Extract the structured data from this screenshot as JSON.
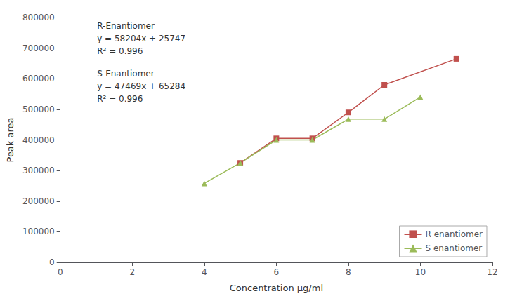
{
  "chart_data": {
    "type": "line",
    "xlabel": "Concentration μg/ml",
    "ylabel": "Peak area",
    "xlim": [
      0,
      12
    ],
    "xticks": [
      0,
      2,
      4,
      6,
      8,
      10,
      12
    ],
    "ylim": [
      0,
      800000
    ],
    "yticks": [
      0,
      100000,
      200000,
      300000,
      400000,
      500000,
      600000,
      700000,
      800000
    ],
    "grid": false,
    "legend": "lower right",
    "annotations": [
      "R-Enantiomer",
      "y = 58204x + 25747",
      "R² = 0.996",
      "S-Enantiomer",
      "y = 47469x + 65284",
      "R² = 0.996"
    ],
    "series": [
      {
        "name": "R enantiomer",
        "color": "#c0504d",
        "marker": "square",
        "line_style": "solid",
        "x": [
          5,
          6,
          7,
          8,
          9,
          11
        ],
        "values": [
          325000,
          405000,
          405000,
          490000,
          580000,
          665000
        ]
      },
      {
        "name": "S enantiomer",
        "color": "#9bbb59",
        "marker": "triangle",
        "line_style": "solid",
        "x": [
          4,
          5,
          6,
          7,
          8,
          9,
          10
        ],
        "values": [
          258000,
          325000,
          400000,
          400000,
          468000,
          468000,
          540000
        ]
      }
    ]
  }
}
